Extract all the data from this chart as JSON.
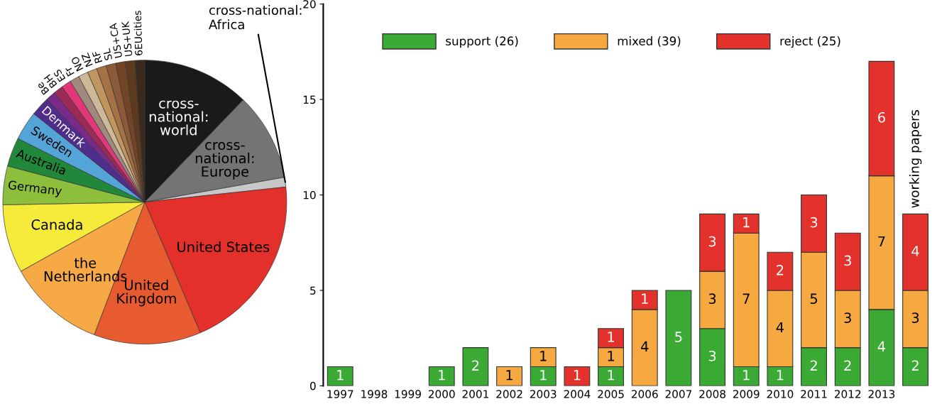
{
  "chart_data": [
    {
      "type": "pie",
      "categories": [
        "cross-\nnational:\nworld",
        "cross-\nnational:\nEurope",
        "cross-national:\nAfrica",
        "United States",
        "United\nKingdom",
        "the\nNetherlands",
        "Canada",
        "Germany",
        "Australia",
        "Sweden",
        "Denmark",
        "Be",
        "BH",
        "ES",
        "Fr",
        "NO",
        "NZ",
        "RF",
        "SL",
        "US+CA",
        "US+UK",
        "6EUcities"
      ],
      "values": [
        12.2,
        10,
        1.1,
        20.3,
        12.2,
        11.1,
        7.8,
        4.4,
        3.3,
        3.3,
        2.2,
        1.1,
        1.1,
        1.1,
        1.1,
        1.1,
        1.1,
        1.1,
        1.1,
        1.1,
        1.1,
        1.1
      ],
      "colors": [
        "#1a1a1a",
        "#747474",
        "#c8c8c8",
        "#e3302b",
        "#e85a30",
        "#f6a944",
        "#f6eb3a",
        "#8dbf3c",
        "#21873b",
        "#55a4d8",
        "#4f2d8a",
        "#7a2a8a",
        "#9b2a55",
        "#e2387a",
        "#a08a7e",
        "#cdb898",
        "#c1955e",
        "#a57246",
        "#8c5a36",
        "#734525",
        "#5e3a1e",
        "#3a2a1e"
      ]
    },
    {
      "type": "bar",
      "stacked": true,
      "categories": [
        "1997",
        "1998",
        "1999",
        "2000",
        "2001",
        "2002",
        "2003",
        "2004",
        "2005",
        "2006",
        "2007",
        "2008",
        "2009",
        "2010",
        "2011",
        "2012",
        "2013",
        null
      ],
      "series": [
        {
          "name": "support (26)",
          "color": "#3aaa35",
          "values": [
            1,
            null,
            null,
            1,
            2,
            null,
            1,
            null,
            1,
            null,
            5,
            3,
            1,
            1,
            2,
            2,
            4,
            2
          ]
        },
        {
          "name": "mixed (39)",
          "color": "#f7a941",
          "values": [
            null,
            null,
            null,
            null,
            null,
            1,
            1,
            null,
            1,
            4,
            null,
            3,
            7,
            4,
            5,
            3,
            7,
            3
          ]
        },
        {
          "name": "reject (25)",
          "color": "#e3322b",
          "values": [
            null,
            null,
            null,
            null,
            null,
            null,
            null,
            1,
            1,
            1,
            null,
            3,
            1,
            2,
            3,
            3,
            6,
            4
          ]
        }
      ],
      "ylim": [
        0,
        20
      ],
      "yticks": [
        0,
        5,
        10,
        15,
        20
      ],
      "data_labels": true,
      "legend": "top left",
      "grid": false,
      "annotations": [
        "working papers"
      ]
    }
  ]
}
